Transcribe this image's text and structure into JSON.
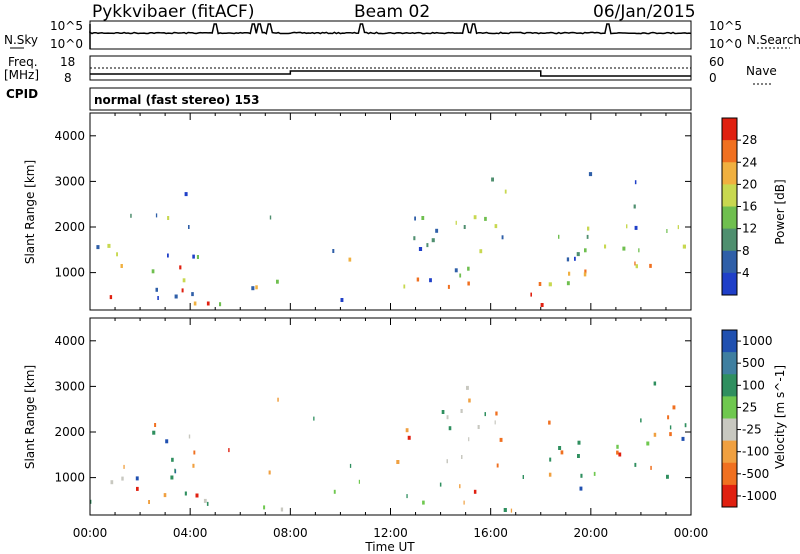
{
  "header": {
    "radar": "Pykkvibaer (fitACF)",
    "beam": "Beam 02",
    "date": "06/Jan/2015"
  },
  "panels": {
    "nsky_label": "N.Sky",
    "nsearch_label": "N.Search",
    "left_ticks_top": [
      "10^5",
      "10^0"
    ],
    "right_ticks_top": [
      "10^5",
      "10^0"
    ],
    "freq_label_1": "Freq.",
    "freq_label_2": "[MHz]",
    "freq_ticks": [
      "18",
      "8"
    ],
    "nave_label": "Nave",
    "nave_ticks": [
      "60",
      "0"
    ],
    "cpid_label": "CPID",
    "cpid_text": "normal (fast stereo) 153"
  },
  "chart_data": [
    {
      "type": "heatmap",
      "title": "",
      "xlabel": "Time UT",
      "ylabel": "Slant Range [km]",
      "x_ticks": [
        "00:00",
        "04:00",
        "08:00",
        "12:00",
        "16:00",
        "20:00",
        "00:00"
      ],
      "y_ticks": [
        "1000",
        "2000",
        "3000",
        "4000"
      ],
      "ylim": [
        180,
        4500
      ],
      "colorbar_label": "Power [dB]",
      "colorbar_ticks": [
        "4",
        "8",
        "12",
        "16",
        "20",
        "24",
        "28"
      ],
      "colorbar_range": [
        0,
        30
      ],
      "colors": [
        "#1f3fc8",
        "#2f5fa8",
        "#4f8f6f",
        "#6fbf4f",
        "#c8d850",
        "#f0b040",
        "#f07020",
        "#e02010"
      ],
      "scatter_regions": [
        {
          "t": [
            0,
            4.5
          ],
          "r": [
            300,
            1800
          ],
          "level": "mixed"
        },
        {
          "t": [
            2,
            4.5
          ],
          "r": [
            1800,
            2600
          ],
          "level": "low"
        },
        {
          "t": [
            6.5,
            8
          ],
          "r": [
            600,
            1200
          ],
          "level": "high"
        },
        {
          "t": [
            14,
            16
          ],
          "r": [
            800,
            2400
          ],
          "level": "mixed"
        },
        {
          "t": [
            16.5,
            17.8
          ],
          "r": [
            250,
            600
          ],
          "level": "high"
        },
        {
          "t": [
            18.5,
            19.5
          ],
          "r": [
            800,
            1500
          ],
          "level": "high"
        },
        {
          "t": [
            20,
            24
          ],
          "r": [
            800,
            2200
          ],
          "level": "mixed"
        }
      ]
    },
    {
      "type": "heatmap",
      "title": "",
      "xlabel": "Time UT",
      "ylabel": "Slant Range [km]",
      "x_ticks": [
        "00:00",
        "04:00",
        "08:00",
        "12:00",
        "16:00",
        "20:00",
        "00:00"
      ],
      "y_ticks": [
        "1000",
        "2000",
        "3000",
        "4000"
      ],
      "ylim": [
        180,
        4500
      ],
      "colorbar_label": "Velocity [m s^-1]",
      "colorbar_ticks": [
        "1000",
        "500",
        "100",
        "25",
        "-25",
        "-100",
        "-500",
        "-1000"
      ],
      "colorbar_range": [
        -1000,
        1000
      ],
      "colors": [
        "#2050b0",
        "#3f7fa0",
        "#2f8f5f",
        "#6fc84f",
        "#c8c8c0",
        "#f0a040",
        "#f07020",
        "#e02010"
      ],
      "ground_scatter_color": "#c8c8c0"
    }
  ],
  "xlabel": "Time UT"
}
